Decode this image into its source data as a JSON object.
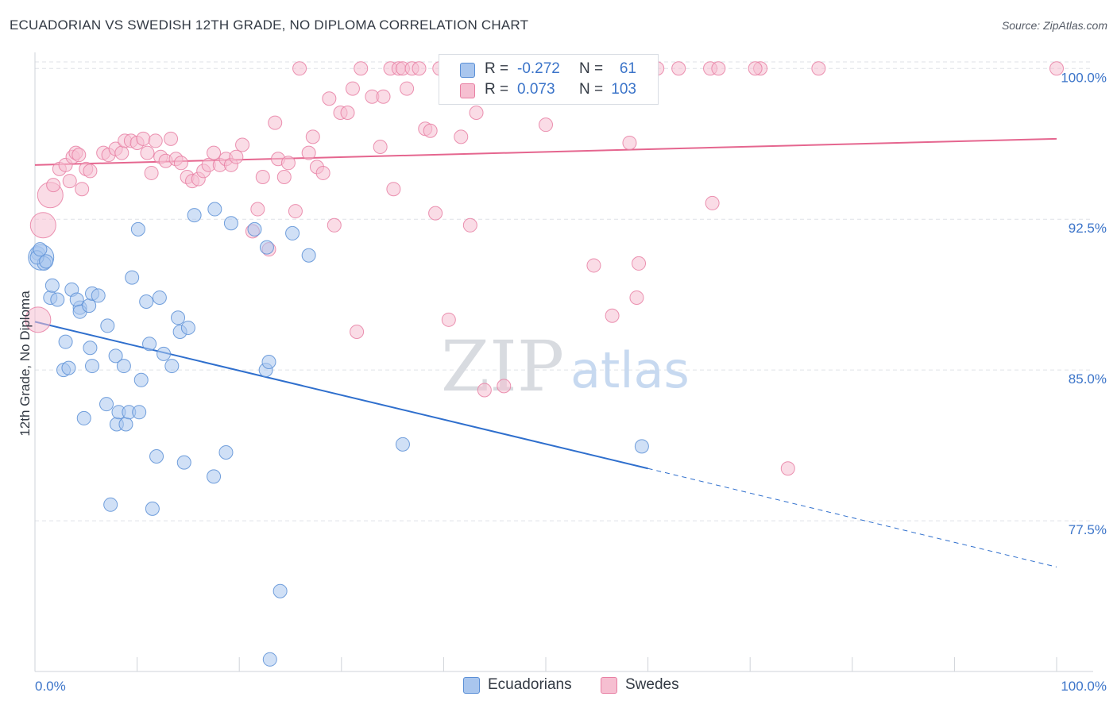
{
  "title": "ECUADORIAN VS SWEDISH 12TH GRADE, NO DIPLOMA CORRELATION CHART",
  "source": "Source: ZipAtlas.com",
  "watermark": {
    "zip": "ZIP",
    "atlas": "atlas"
  },
  "colors": {
    "ecuadorians_fill": "#a9c6ee",
    "ecuadorians_stroke": "#5b8fd6",
    "ecuadorians_line": "#2f6fcd",
    "swedes_fill": "#f6bfd1",
    "swedes_stroke": "#e87fa3",
    "swedes_line": "#e5668f",
    "value_text": "#3b74c9"
  },
  "legend": {
    "rows": [
      {
        "r_label": "R =",
        "r_value": "-0.272",
        "n_label": "N =",
        "n_value": "61"
      },
      {
        "r_label": "R =",
        "r_value": "0.073",
        "n_label": "N =",
        "n_value": "103"
      }
    ]
  },
  "bottom_legend": [
    "Ecuadorians",
    "Swedes"
  ],
  "chart_data": {
    "type": "scatter",
    "title": "ECUADORIAN VS SWEDISH 12TH GRADE, NO DIPLOMA CORRELATION CHART",
    "xlabel": "",
    "ylabel": "12th Grade, No Diploma",
    "x_tick_labels": [
      "0.0%",
      "100.0%"
    ],
    "y_tick_labels": [
      "100.0%",
      "92.5%",
      "85.0%",
      "77.5%"
    ],
    "y_ticks": [
      100.0,
      92.5,
      85.0,
      77.5
    ],
    "xlim": [
      0,
      100
    ],
    "ylim": [
      70.0,
      100.8
    ],
    "grid": true,
    "legend_position": "top-center",
    "series": [
      {
        "name": "Ecuadorians",
        "color": "#5b8fd6",
        "trend": {
          "x0": 0,
          "y0": 87.4,
          "x1": 60,
          "y1": 80.1,
          "dashed_to_x": 100,
          "dashed_to_y": 75.2
        },
        "points": [
          [
            0.3,
            90.8,
            0
          ],
          [
            0.6,
            90.6,
            1
          ],
          [
            0.9,
            90.3,
            0
          ],
          [
            1.5,
            88.6,
            0
          ],
          [
            1.7,
            89.2,
            0
          ],
          [
            2.2,
            88.5,
            0
          ],
          [
            3.6,
            89.0,
            0
          ],
          [
            4.4,
            88.1,
            0
          ],
          [
            4.1,
            88.5,
            0
          ],
          [
            4.4,
            87.9,
            0
          ],
          [
            5.3,
            88.2,
            0
          ],
          [
            5.6,
            88.8,
            0
          ],
          [
            6.2,
            88.7,
            0
          ],
          [
            7.1,
            87.2,
            0
          ],
          [
            3.0,
            86.4,
            0
          ],
          [
            2.8,
            85.0,
            0
          ],
          [
            3.3,
            85.1,
            0
          ],
          [
            5.4,
            86.1,
            0
          ],
          [
            5.6,
            85.2,
            0
          ],
          [
            7.9,
            85.7,
            0
          ],
          [
            8.7,
            85.2,
            0
          ],
          [
            9.5,
            89.6,
            0
          ],
          [
            10.1,
            92.0,
            0
          ],
          [
            10.4,
            84.5,
            0
          ],
          [
            10.9,
            88.4,
            0
          ],
          [
            11.2,
            86.3,
            0
          ],
          [
            12.2,
            88.6,
            0
          ],
          [
            12.6,
            85.8,
            0
          ],
          [
            13.4,
            85.2,
            0
          ],
          [
            14.0,
            87.6,
            0
          ],
          [
            14.2,
            86.9,
            0
          ],
          [
            15.0,
            87.1,
            0
          ],
          [
            15.6,
            92.7,
            0
          ],
          [
            17.6,
            93.0,
            0
          ],
          [
            19.2,
            92.3,
            0
          ],
          [
            21.5,
            92.0,
            0
          ],
          [
            22.7,
            91.1,
            0
          ],
          [
            22.6,
            85.0,
            0
          ],
          [
            22.9,
            85.4,
            0
          ],
          [
            25.2,
            91.8,
            0
          ],
          [
            26.8,
            90.7,
            0
          ],
          [
            7.0,
            83.3,
            0
          ],
          [
            8.0,
            82.3,
            0
          ],
          [
            8.2,
            82.9,
            0
          ],
          [
            8.9,
            82.3,
            0
          ],
          [
            9.2,
            82.9,
            0
          ],
          [
            10.2,
            82.9,
            0
          ],
          [
            4.8,
            82.6,
            0
          ],
          [
            11.9,
            80.7,
            0
          ],
          [
            14.6,
            80.4,
            0
          ],
          [
            17.5,
            79.7,
            0
          ],
          [
            18.7,
            80.9,
            0
          ],
          [
            7.4,
            78.3,
            0
          ],
          [
            11.5,
            78.1,
            0
          ],
          [
            24.0,
            74.0,
            0
          ],
          [
            23.0,
            70.6,
            0
          ],
          [
            36.0,
            81.3,
            0
          ],
          [
            59.4,
            81.2,
            0
          ],
          [
            0.2,
            90.6,
            0
          ],
          [
            1.1,
            90.4,
            0
          ],
          [
            0.5,
            91.0,
            0
          ]
        ]
      },
      {
        "name": "Swedes",
        "color": "#e87fa3",
        "trend": {
          "x0": 0,
          "y0": 95.2,
          "x1": 100,
          "y1": 96.5
        },
        "points": [
          [
            0.3,
            87.5,
            1
          ],
          [
            0.8,
            92.2,
            1
          ],
          [
            1.5,
            93.7,
            1
          ],
          [
            1.8,
            94.2,
            0
          ],
          [
            2.4,
            95.0,
            0
          ],
          [
            3.0,
            95.2,
            0
          ],
          [
            3.4,
            94.4,
            0
          ],
          [
            3.7,
            95.6,
            0
          ],
          [
            4.0,
            95.8,
            0
          ],
          [
            4.3,
            95.7,
            0
          ],
          [
            4.6,
            94.0,
            0
          ],
          [
            5.0,
            95.0,
            0
          ],
          [
            5.4,
            94.9,
            0
          ],
          [
            6.7,
            95.8,
            0
          ],
          [
            7.2,
            95.7,
            0
          ],
          [
            7.9,
            96.0,
            0
          ],
          [
            8.5,
            95.8,
            0
          ],
          [
            8.8,
            96.4,
            0
          ],
          [
            9.4,
            96.4,
            0
          ],
          [
            10.0,
            96.3,
            0
          ],
          [
            10.6,
            96.5,
            0
          ],
          [
            11.0,
            95.8,
            0
          ],
          [
            11.4,
            94.8,
            0
          ],
          [
            11.8,
            96.4,
            0
          ],
          [
            12.3,
            95.6,
            0
          ],
          [
            12.8,
            95.4,
            0
          ],
          [
            13.3,
            96.5,
            0
          ],
          [
            13.8,
            95.5,
            0
          ],
          [
            14.3,
            95.3,
            0
          ],
          [
            14.9,
            94.6,
            0
          ],
          [
            15.4,
            94.4,
            0
          ],
          [
            16.0,
            94.5,
            0
          ],
          [
            16.5,
            94.9,
            0
          ],
          [
            17.0,
            95.2,
            0
          ],
          [
            17.5,
            95.8,
            0
          ],
          [
            18.1,
            95.2,
            0
          ],
          [
            18.7,
            95.5,
            0
          ],
          [
            19.2,
            95.2,
            0
          ],
          [
            19.7,
            95.6,
            0
          ],
          [
            20.3,
            96.2,
            0
          ],
          [
            21.3,
            91.9,
            0
          ],
          [
            21.8,
            93.0,
            0
          ],
          [
            22.3,
            94.6,
            0
          ],
          [
            22.9,
            91.0,
            0
          ],
          [
            23.5,
            97.3,
            0
          ],
          [
            23.8,
            95.5,
            0
          ],
          [
            24.4,
            94.6,
            0
          ],
          [
            24.8,
            95.3,
            0
          ],
          [
            25.5,
            92.9,
            0
          ],
          [
            25.9,
            100.0,
            0
          ],
          [
            26.8,
            95.8,
            0
          ],
          [
            27.2,
            96.6,
            0
          ],
          [
            27.6,
            95.1,
            0
          ],
          [
            28.2,
            94.8,
            0
          ],
          [
            28.8,
            98.5,
            0
          ],
          [
            29.3,
            92.2,
            0
          ],
          [
            29.9,
            97.8,
            0
          ],
          [
            30.6,
            97.8,
            0
          ],
          [
            31.1,
            99.0,
            0
          ],
          [
            31.5,
            86.9,
            0
          ],
          [
            31.9,
            100.0,
            0
          ],
          [
            33.0,
            98.6,
            0
          ],
          [
            33.8,
            96.1,
            0
          ],
          [
            34.1,
            98.6,
            0
          ],
          [
            34.8,
            100.0,
            0
          ],
          [
            35.1,
            94.0,
            0
          ],
          [
            35.6,
            100.0,
            0
          ],
          [
            36.0,
            100.0,
            0
          ],
          [
            36.4,
            99.0,
            0
          ],
          [
            36.9,
            100.0,
            0
          ],
          [
            37.6,
            100.0,
            0
          ],
          [
            38.2,
            97.0,
            0
          ],
          [
            38.7,
            96.9,
            0
          ],
          [
            39.2,
            92.8,
            0
          ],
          [
            39.6,
            100.0,
            0
          ],
          [
            40.5,
            87.5,
            0
          ],
          [
            40.9,
            100.0,
            0
          ],
          [
            41.7,
            96.6,
            0
          ],
          [
            42.3,
            100.0,
            0
          ],
          [
            42.6,
            92.2,
            0
          ],
          [
            43.2,
            97.8,
            0
          ],
          [
            44.0,
            84.0,
            0
          ],
          [
            45.0,
            100.0,
            0
          ],
          [
            45.9,
            84.2,
            0
          ],
          [
            48.0,
            100.0,
            0
          ],
          [
            50.0,
            97.2,
            0
          ],
          [
            54.0,
            100.0,
            0
          ],
          [
            54.7,
            90.2,
            0
          ],
          [
            56.5,
            87.7,
            0
          ],
          [
            58.2,
            96.3,
            0
          ],
          [
            58.7,
            100.0,
            0
          ],
          [
            58.9,
            88.6,
            0
          ],
          [
            59.1,
            90.3,
            0
          ],
          [
            60.9,
            100.0,
            0
          ],
          [
            63.0,
            100.0,
            0
          ],
          [
            66.1,
            100.0,
            0
          ],
          [
            66.9,
            100.0,
            0
          ],
          [
            66.3,
            93.3,
            0
          ],
          [
            71.0,
            100.0,
            0
          ],
          [
            73.7,
            80.1,
            0
          ],
          [
            76.7,
            100.0,
            0
          ],
          [
            100.0,
            100.0,
            0
          ],
          [
            70.5,
            100.0,
            0
          ]
        ]
      }
    ]
  }
}
